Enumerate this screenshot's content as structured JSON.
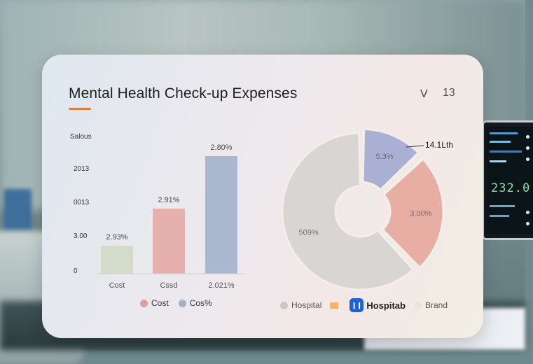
{
  "card": {
    "title": "Mental Health Check-up Expenses",
    "chevron": "V",
    "count": "13"
  },
  "monitor": {
    "digits": "232.0"
  },
  "chart_data": [
    {
      "type": "bar",
      "ylabel": "Salous",
      "yticks": [
        "0",
        "3.00",
        "0013",
        "2013"
      ],
      "categories": [
        "Cost",
        "Cssd",
        "2.021%"
      ],
      "values": [
        2.93,
        2.91,
        2.8
      ],
      "heights": [
        40,
        93,
        168
      ],
      "value_labels": [
        "2.93%",
        "2.91%",
        "2.80%"
      ],
      "colors": [
        "#d3dccb",
        "#e6b1ad",
        "#aab7cf"
      ],
      "legend": [
        {
          "label": "Cost",
          "color": "#e0a09a"
        },
        {
          "label": "Cos%",
          "color": "#a6b1c3"
        }
      ]
    },
    {
      "type": "pie",
      "slices": [
        {
          "label": "509%",
          "value": 62,
          "color": "#d9d5d3"
        },
        {
          "label": "5.3%",
          "value": 13,
          "color": "#aab0d3"
        },
        {
          "label": "3.00%",
          "value": 25,
          "color": "#e8aea3"
        }
      ],
      "callout": "14.1Lth",
      "legend": [
        {
          "label": "Hospital",
          "color": "#c7c9c2",
          "marker": "dot"
        },
        {
          "label": "",
          "color": "#f2b26a",
          "marker": "square"
        },
        {
          "label": "Hospitab",
          "color": "#1e63d6",
          "marker": "brand"
        },
        {
          "label": "Brand",
          "color": "#e9e6dc",
          "marker": "dot"
        }
      ]
    }
  ]
}
